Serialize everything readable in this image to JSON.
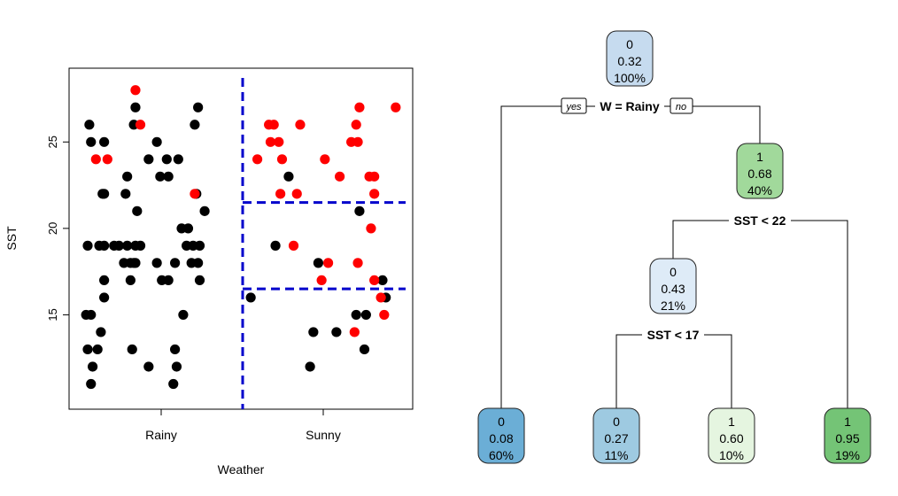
{
  "chart_data": [
    {
      "type": "scatter",
      "title": "",
      "xlabel": "Weather",
      "ylabel": "SST",
      "x_categories": [
        "Rainy",
        "Sunny"
      ],
      "yticks": [
        15,
        20,
        25
      ],
      "ylim": [
        10,
        28.5
      ],
      "grid": false,
      "colors": {
        "class0": "#000000",
        "class1": "#ff0000",
        "split": "#0000cc"
      },
      "split_lines": [
        {
          "kind": "vertical",
          "between": [
            "Rainy",
            "Sunny"
          ]
        },
        {
          "kind": "horizontal",
          "y": 21.5,
          "side": "Sunny"
        },
        {
          "kind": "horizontal",
          "y": 16.5,
          "side": "Sunny"
        }
      ],
      "series": [
        {
          "class": "0",
          "color": "#000000",
          "points": [
            {
              "x": "Rainy",
              "j": 0.08,
              "y": 26
            },
            {
              "x": "Rainy",
              "j": 0.09,
              "y": 25
            },
            {
              "x": "Rainy",
              "j": 0.07,
              "y": 19
            },
            {
              "x": "Rainy",
              "j": 0.06,
              "y": 15
            },
            {
              "x": "Rainy",
              "j": 0.09,
              "y": 15
            },
            {
              "x": "Rainy",
              "j": 0.07,
              "y": 13
            },
            {
              "x": "Rainy",
              "j": 0.1,
              "y": 12
            },
            {
              "x": "Rainy",
              "j": 0.09,
              "y": 11
            },
            {
              "x": "Rainy",
              "j": 0.13,
              "y": 13
            },
            {
              "x": "Rainy",
              "j": 0.14,
              "y": 19
            },
            {
              "x": "Rainy",
              "j": 0.15,
              "y": 14
            },
            {
              "x": "Rainy",
              "j": 0.16,
              "y": 22
            },
            {
              "x": "Rainy",
              "j": 0.17,
              "y": 22
            },
            {
              "x": "Rainy",
              "j": 0.17,
              "y": 25
            },
            {
              "x": "Rainy",
              "j": 0.17,
              "y": 19
            },
            {
              "x": "Rainy",
              "j": 0.17,
              "y": 17
            },
            {
              "x": "Rainy",
              "j": 0.17,
              "y": 16
            },
            {
              "x": "Rainy",
              "j": 0.23,
              "y": 19
            },
            {
              "x": "Rainy",
              "j": 0.26,
              "y": 19
            },
            {
              "x": "Rainy",
              "j": 0.29,
              "y": 18
            },
            {
              "x": "Rainy",
              "j": 0.3,
              "y": 22
            },
            {
              "x": "Rainy",
              "j": 0.31,
              "y": 23
            },
            {
              "x": "Rainy",
              "j": 0.31,
              "y": 19
            },
            {
              "x": "Rainy",
              "j": 0.33,
              "y": 18
            },
            {
              "x": "Rainy",
              "j": 0.33,
              "y": 17
            },
            {
              "x": "Rainy",
              "j": 0.34,
              "y": 13
            },
            {
              "x": "Rainy",
              "j": 0.35,
              "y": 18
            },
            {
              "x": "Rainy",
              "j": 0.35,
              "y": 26
            },
            {
              "x": "Rainy",
              "j": 0.36,
              "y": 27
            },
            {
              "x": "Rainy",
              "j": 0.36,
              "y": 18
            },
            {
              "x": "Rainy",
              "j": 0.36,
              "y": 19
            },
            {
              "x": "Rainy",
              "j": 0.37,
              "y": 21
            },
            {
              "x": "Rainy",
              "j": 0.39,
              "y": 19
            },
            {
              "x": "Rainy",
              "j": 0.44,
              "y": 24
            },
            {
              "x": "Rainy",
              "j": 0.44,
              "y": 12
            },
            {
              "x": "Rainy",
              "j": 0.49,
              "y": 25
            },
            {
              "x": "Rainy",
              "j": 0.49,
              "y": 18
            },
            {
              "x": "Rainy",
              "j": 0.51,
              "y": 23
            },
            {
              "x": "Rainy",
              "j": 0.52,
              "y": 17
            },
            {
              "x": "Rainy",
              "j": 0.55,
              "y": 24
            },
            {
              "x": "Rainy",
              "j": 0.56,
              "y": 17
            },
            {
              "x": "Rainy",
              "j": 0.56,
              "y": 23
            },
            {
              "x": "Rainy",
              "j": 0.59,
              "y": 11
            },
            {
              "x": "Rainy",
              "j": 0.6,
              "y": 13
            },
            {
              "x": "Rainy",
              "j": 0.6,
              "y": 18
            },
            {
              "x": "Rainy",
              "j": 0.61,
              "y": 12
            },
            {
              "x": "Rainy",
              "j": 0.62,
              "y": 24
            },
            {
              "x": "Rainy",
              "j": 0.64,
              "y": 20
            },
            {
              "x": "Rainy",
              "j": 0.65,
              "y": 15
            },
            {
              "x": "Rainy",
              "j": 0.67,
              "y": 19
            },
            {
              "x": "Rainy",
              "j": 0.68,
              "y": 20
            },
            {
              "x": "Rainy",
              "j": 0.7,
              "y": 18
            },
            {
              "x": "Rainy",
              "j": 0.71,
              "y": 19
            },
            {
              "x": "Rainy",
              "j": 0.72,
              "y": 26
            },
            {
              "x": "Rainy",
              "j": 0.73,
              "y": 22
            },
            {
              "x": "Rainy",
              "j": 0.74,
              "y": 18
            },
            {
              "x": "Rainy",
              "j": 0.74,
              "y": 27
            },
            {
              "x": "Rainy",
              "j": 0.75,
              "y": 17
            },
            {
              "x": "Rainy",
              "j": 0.75,
              "y": 19
            },
            {
              "x": "Rainy",
              "j": 0.78,
              "y": 21
            },
            {
              "x": "Sunny",
              "j": 0.06,
              "y": 16
            },
            {
              "x": "Sunny",
              "j": 0.21,
              "y": 19
            },
            {
              "x": "Sunny",
              "j": 0.29,
              "y": 23
            },
            {
              "x": "Sunny",
              "j": 0.42,
              "y": 12
            },
            {
              "x": "Sunny",
              "j": 0.44,
              "y": 14
            },
            {
              "x": "Sunny",
              "j": 0.47,
              "y": 18
            },
            {
              "x": "Sunny",
              "j": 0.58,
              "y": 14
            },
            {
              "x": "Sunny",
              "j": 0.7,
              "y": 15
            },
            {
              "x": "Sunny",
              "j": 0.75,
              "y": 13
            },
            {
              "x": "Sunny",
              "j": 0.76,
              "y": 15
            },
            {
              "x": "Sunny",
              "j": 0.72,
              "y": 21
            },
            {
              "x": "Sunny",
              "j": 0.88,
              "y": 16
            },
            {
              "x": "Sunny",
              "j": 0.86,
              "y": 17
            }
          ]
        },
        {
          "class": "1",
          "color": "#ff0000",
          "points": [
            {
              "x": "Rainy",
              "j": 0.12,
              "y": 24
            },
            {
              "x": "Rainy",
              "j": 0.19,
              "y": 24
            },
            {
              "x": "Rainy",
              "j": 0.36,
              "y": 28
            },
            {
              "x": "Rainy",
              "j": 0.39,
              "y": 26
            },
            {
              "x": "Rainy",
              "j": 0.72,
              "y": 22
            },
            {
              "x": "Sunny",
              "j": 0.1,
              "y": 24
            },
            {
              "x": "Sunny",
              "j": 0.17,
              "y": 26
            },
            {
              "x": "Sunny",
              "j": 0.18,
              "y": 25
            },
            {
              "x": "Sunny",
              "j": 0.2,
              "y": 26
            },
            {
              "x": "Sunny",
              "j": 0.23,
              "y": 25
            },
            {
              "x": "Sunny",
              "j": 0.24,
              "y": 22
            },
            {
              "x": "Sunny",
              "j": 0.25,
              "y": 24
            },
            {
              "x": "Sunny",
              "j": 0.34,
              "y": 22
            },
            {
              "x": "Sunny",
              "j": 0.36,
              "y": 26
            },
            {
              "x": "Sunny",
              "j": 0.32,
              "y": 19
            },
            {
              "x": "Sunny",
              "j": 0.49,
              "y": 17
            },
            {
              "x": "Sunny",
              "j": 0.51,
              "y": 24
            },
            {
              "x": "Sunny",
              "j": 0.53,
              "y": 18
            },
            {
              "x": "Sunny",
              "j": 0.6,
              "y": 23
            },
            {
              "x": "Sunny",
              "j": 0.67,
              "y": 25
            },
            {
              "x": "Sunny",
              "j": 0.7,
              "y": 26
            },
            {
              "x": "Sunny",
              "j": 0.71,
              "y": 25
            },
            {
              "x": "Sunny",
              "j": 0.72,
              "y": 27
            },
            {
              "x": "Sunny",
              "j": 0.71,
              "y": 18
            },
            {
              "x": "Sunny",
              "j": 0.69,
              "y": 14
            },
            {
              "x": "Sunny",
              "j": 0.78,
              "y": 23
            },
            {
              "x": "Sunny",
              "j": 0.81,
              "y": 22
            },
            {
              "x": "Sunny",
              "j": 0.81,
              "y": 23
            },
            {
              "x": "Sunny",
              "j": 0.79,
              "y": 20
            },
            {
              "x": "Sunny",
              "j": 0.81,
              "y": 17
            },
            {
              "x": "Sunny",
              "j": 0.85,
              "y": 16
            },
            {
              "x": "Sunny",
              "j": 0.87,
              "y": 15
            },
            {
              "x": "Sunny",
              "j": 0.94,
              "y": 27
            }
          ]
        }
      ]
    },
    {
      "type": "decision-tree",
      "title": "",
      "nodes": [
        {
          "id": "root",
          "class": "0",
          "prob": "0.32",
          "pct": "100%",
          "color": "#c6dbef"
        },
        {
          "id": "right",
          "class": "1",
          "prob": "0.68",
          "pct": "40%",
          "color": "#a1d99b"
        },
        {
          "id": "mid",
          "class": "0",
          "prob": "0.43",
          "pct": "21%",
          "color": "#deebf7"
        },
        {
          "id": "leaf1",
          "class": "0",
          "prob": "0.08",
          "pct": "60%",
          "color": "#6baed6"
        },
        {
          "id": "leaf2",
          "class": "0",
          "prob": "0.27",
          "pct": "11%",
          "color": "#9ecae1"
        },
        {
          "id": "leaf3",
          "class": "1",
          "prob": "0.60",
          "pct": "10%",
          "color": "#e5f5e0"
        },
        {
          "id": "leaf4",
          "class": "1",
          "prob": "0.95",
          "pct": "19%",
          "color": "#74c476"
        }
      ],
      "splits": [
        {
          "node": "root",
          "label": "W = Rainy",
          "yes": "yes",
          "no": "no"
        },
        {
          "node": "right",
          "label": "SST < 22"
        },
        {
          "node": "mid",
          "label": "SST < 17"
        }
      ]
    }
  ]
}
